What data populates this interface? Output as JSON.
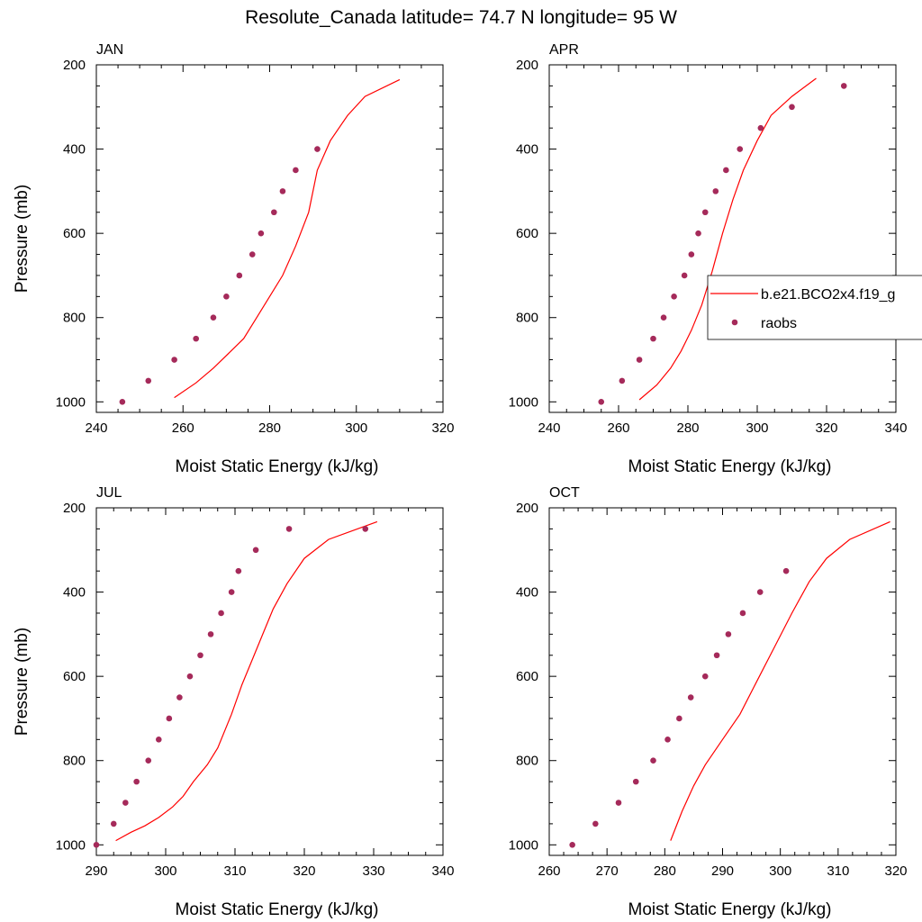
{
  "title": "Resolute_Canada  latitude= 74.7 N longitude= 95 W",
  "colors": {
    "model": "#ff0000",
    "obs": "#a52a5a"
  },
  "legend": {
    "placement": "right edge of APR panel",
    "entries": [
      {
        "label": "b.e21.BCO2x4.f19_g",
        "style": "line"
      },
      {
        "label": "raobs",
        "style": "marker"
      }
    ]
  },
  "chart_data": [
    {
      "type": "line",
      "panel_title": "JAN",
      "xlabel": "Moist Static Energy (kJ/kg)",
      "ylabel": "Pressure (mb)",
      "xlim": [
        240,
        320
      ],
      "ylim": [
        1025,
        200
      ],
      "y_reversed": true,
      "xticks": [
        240,
        260,
        280,
        300,
        320
      ],
      "yticks": [
        200,
        400,
        600,
        800,
        1000
      ],
      "series": [
        {
          "name": "b.e21.BCO2x4.f19_g",
          "style": "line",
          "x": [
            258,
            263,
            267,
            271,
            274,
            277,
            280,
            283,
            286,
            289,
            291,
            294,
            298,
            302,
            310
          ],
          "y": [
            990,
            955,
            920,
            880,
            850,
            800,
            750,
            700,
            630,
            550,
            450,
            380,
            320,
            275,
            235
          ]
        },
        {
          "name": "raobs",
          "style": "marker",
          "x": [
            246,
            252,
            258,
            263,
            267,
            270,
            273,
            276,
            278,
            281,
            283,
            286,
            291
          ],
          "y": [
            1000,
            950,
            900,
            850,
            800,
            750,
            700,
            650,
            600,
            550,
            500,
            450,
            400
          ]
        }
      ]
    },
    {
      "type": "line",
      "panel_title": "APR",
      "xlabel": "Moist Static Energy (kJ/kg)",
      "ylabel": "",
      "xlim": [
        240,
        340
      ],
      "ylim": [
        1025,
        200
      ],
      "y_reversed": true,
      "xticks": [
        240,
        260,
        280,
        300,
        320,
        340
      ],
      "yticks": [
        200,
        400,
        600,
        800,
        1000
      ],
      "series": [
        {
          "name": "b.e21.BCO2x4.f19_g",
          "style": "line",
          "x": [
            266,
            271,
            275,
            278,
            281,
            284,
            287,
            290,
            293,
            296,
            300,
            304,
            310,
            317
          ],
          "y": [
            995,
            960,
            920,
            880,
            830,
            770,
            690,
            600,
            520,
            450,
            380,
            320,
            275,
            232
          ]
        },
        {
          "name": "raobs",
          "style": "marker",
          "x": [
            255,
            261,
            266,
            270,
            273,
            276,
            279,
            281,
            283,
            285,
            288,
            291,
            295,
            301,
            310,
            325
          ],
          "y": [
            1000,
            950,
            900,
            850,
            800,
            750,
            700,
            650,
            600,
            550,
            500,
            450,
            400,
            350,
            300,
            250
          ]
        }
      ]
    },
    {
      "type": "line",
      "panel_title": "JUL",
      "xlabel": "Moist Static Energy (kJ/kg)",
      "ylabel": "Pressure (mb)",
      "xlim": [
        290,
        340
      ],
      "ylim": [
        1025,
        200
      ],
      "y_reversed": true,
      "xticks": [
        290,
        300,
        310,
        320,
        330,
        340
      ],
      "yticks": [
        200,
        400,
        600,
        800,
        1000
      ],
      "series": [
        {
          "name": "b.e21.BCO2x4.f19_g",
          "style": "line",
          "x": [
            292.8,
            295,
            297,
            299,
            301,
            302.5,
            304,
            306,
            307.5,
            309.5,
            311,
            312.5,
            314,
            315.5,
            317.5,
            320,
            323.5,
            330.5
          ],
          "y": [
            990,
            970,
            955,
            935,
            910,
            885,
            850,
            810,
            770,
            690,
            620,
            560,
            500,
            440,
            380,
            320,
            275,
            233
          ]
        },
        {
          "name": "raobs",
          "style": "marker",
          "x": [
            290,
            292.5,
            294.2,
            295.8,
            297.5,
            299,
            300.5,
            302,
            303.5,
            305,
            306.5,
            308,
            309.5,
            310.5,
            313,
            317.8,
            328.8
          ],
          "y": [
            1000,
            950,
            900,
            850,
            800,
            750,
            700,
            650,
            600,
            550,
            500,
            450,
            400,
            350,
            300,
            250,
            250
          ]
        }
      ]
    },
    {
      "type": "line",
      "panel_title": "OCT",
      "xlabel": "Moist Static Energy (kJ/kg)",
      "ylabel": "",
      "xlim": [
        260,
        320
      ],
      "ylim": [
        1025,
        200
      ],
      "y_reversed": true,
      "xticks": [
        260,
        270,
        280,
        290,
        300,
        310,
        320
      ],
      "yticks": [
        200,
        400,
        600,
        800,
        1000
      ],
      "series": [
        {
          "name": "b.e21.BCO2x4.f19_g",
          "style": "line",
          "x": [
            281,
            283,
            285,
            287,
            290,
            293,
            296,
            299,
            302,
            305,
            308,
            312,
            319
          ],
          "y": [
            990,
            920,
            860,
            810,
            750,
            690,
            610,
            530,
            450,
            375,
            320,
            275,
            233
          ]
        },
        {
          "name": "raobs",
          "style": "marker",
          "x": [
            264,
            268,
            272,
            275,
            278,
            280.5,
            282.5,
            284.5,
            287,
            289,
            291,
            293.5,
            296.5,
            301
          ],
          "y": [
            1000,
            950,
            900,
            850,
            800,
            750,
            700,
            650,
            600,
            550,
            500,
            450,
            400,
            350
          ]
        }
      ]
    }
  ]
}
